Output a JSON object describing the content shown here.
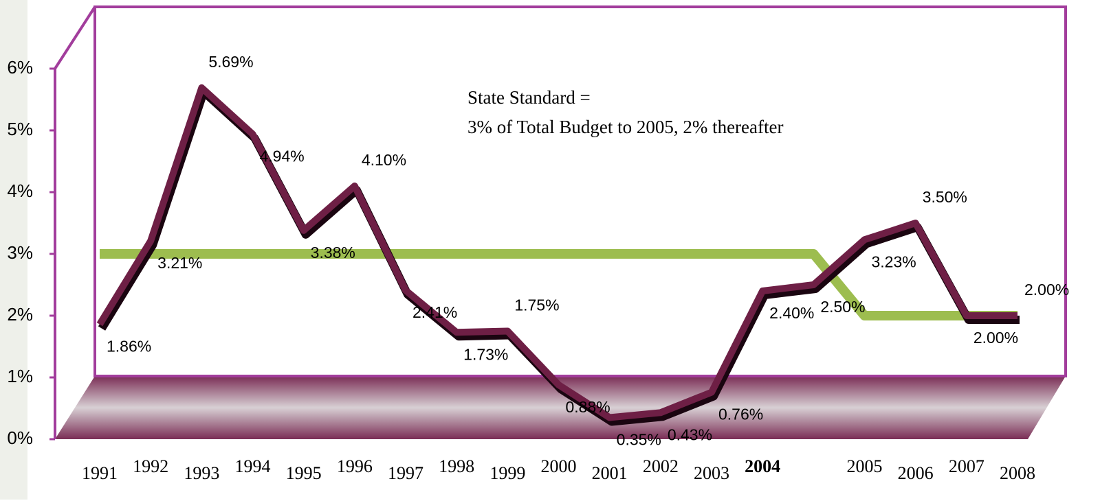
{
  "chart_data": {
    "type": "line",
    "annotation": [
      "State Standard =",
      "3% of Total Budget to 2005, 2% thereafter"
    ],
    "categories": [
      "1991",
      "1992",
      "1993",
      "1994",
      "1995",
      "1996",
      "1997",
      "1998",
      "1999",
      "2000",
      "2001",
      "2002",
      "2003",
      "2004",
      null,
      "2005",
      "2006",
      "2007",
      "2008"
    ],
    "bold_category": "2004",
    "series": [
      {
        "color": "#6e1f45",
        "values": [
          1.86,
          3.21,
          5.69,
          4.94,
          3.38,
          4.1,
          2.41,
          1.73,
          1.75,
          0.88,
          0.35,
          0.43,
          0.76,
          2.4,
          2.5,
          3.23,
          3.5,
          2.0,
          2.0
        ],
        "value_labels": [
          "1.86%",
          "3.21%",
          "5.69%",
          "4.94%",
          "3.38%",
          "4.10%",
          "2.41%",
          "1.73%",
          "1.75%",
          "0.88%",
          "0.35%",
          "0.43%",
          "0.76%",
          "2.40%",
          "2.50%",
          "3.23%",
          "3.50%",
          "2.00%",
          "2.00%"
        ]
      },
      {
        "color": "#9dbd4f",
        "values": [
          3,
          3,
          3,
          3,
          3,
          3,
          3,
          3,
          3,
          3,
          3,
          3,
          3,
          3,
          3,
          2,
          2,
          2,
          2
        ]
      }
    ],
    "ylim": [
      0,
      6
    ],
    "yticks": [
      {
        "value": 0,
        "label": "0%"
      },
      {
        "value": 1,
        "label": "1%"
      },
      {
        "value": 2,
        "label": "2%"
      },
      {
        "value": 3,
        "label": "3%"
      },
      {
        "value": 4,
        "label": "4%"
      },
      {
        "value": 5,
        "label": "5%"
      },
      {
        "value": 6,
        "label": "6%"
      }
    ]
  }
}
